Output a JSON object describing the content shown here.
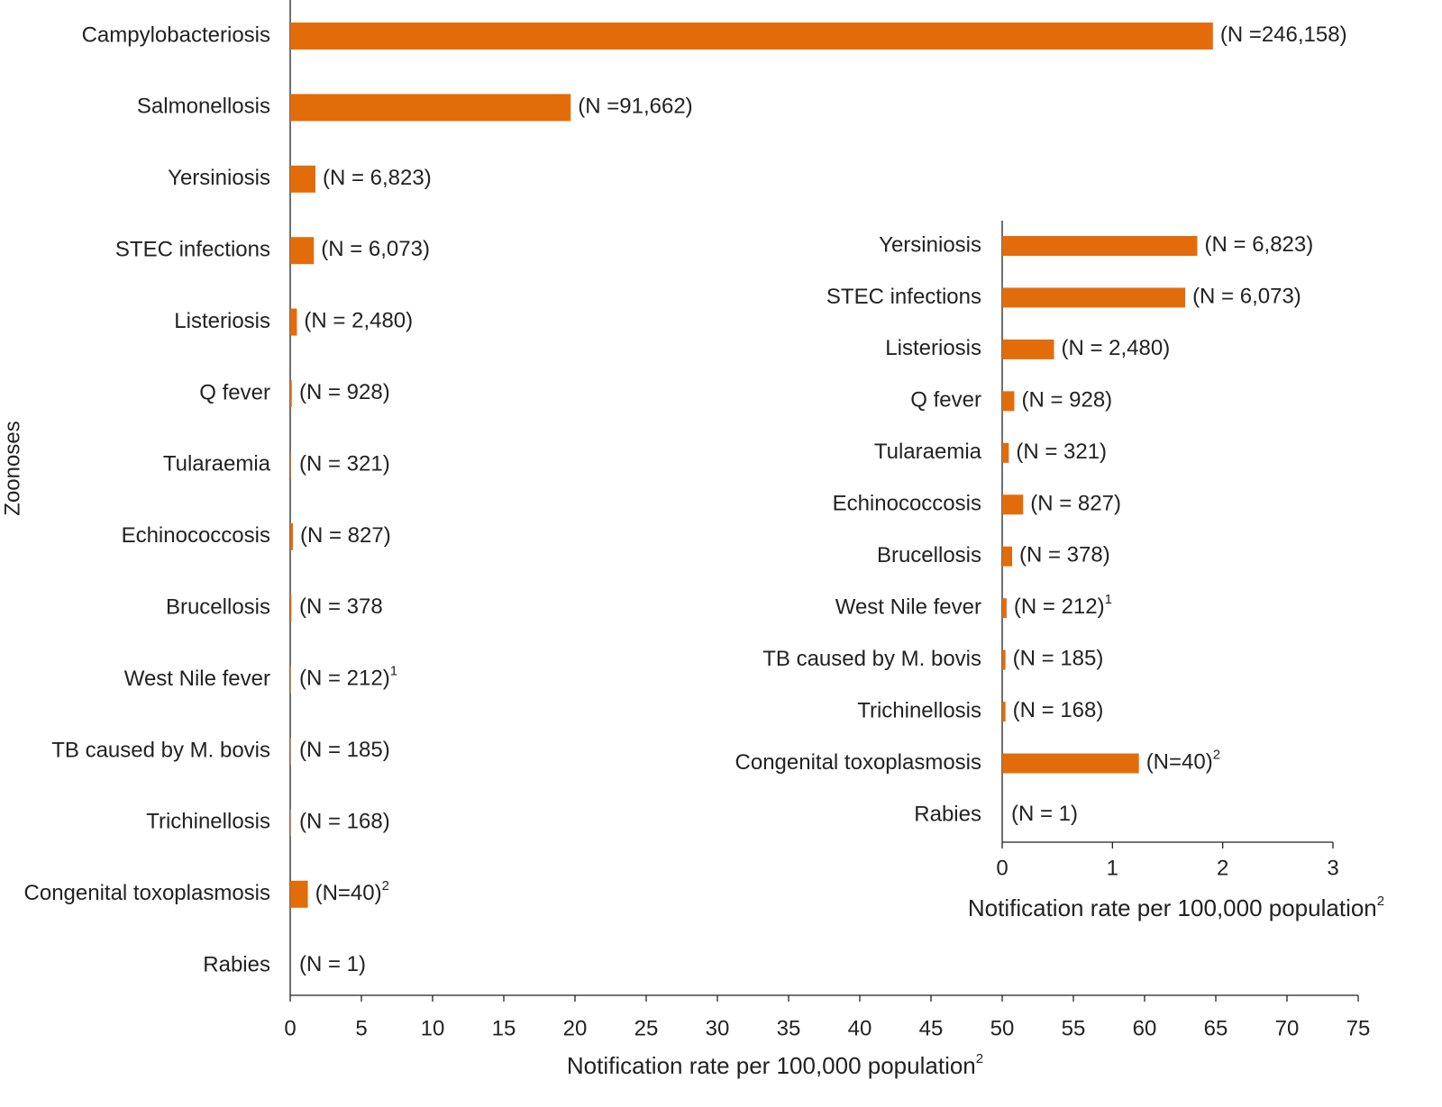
{
  "chart_data": [
    {
      "type": "bar",
      "orientation": "horizontal",
      "color": "#e36c0a",
      "y_label": "Zoonoses",
      "x_label": "Notification rate per 100,000 population",
      "x_label_sup": "2",
      "categories": [
        "Campylobacteriosis",
        "Salmonellosis",
        "Yersiniosis",
        "STEC infections",
        "Listeriosis",
        "Q fever",
        "Tularaemia",
        "Echinococcosis",
        "Brucellosis",
        "West Nile fever",
        "TB caused by M. bovis",
        "Trichinellosis",
        "Congenital toxoplasmosis",
        "Rabies"
      ],
      "values": [
        64.8,
        19.7,
        1.77,
        1.66,
        0.47,
        0.11,
        0.06,
        0.19,
        0.09,
        0.04,
        0.03,
        0.03,
        1.24,
        0
      ],
      "annotations": [
        {
          "text": "(N =246,158)"
        },
        {
          "text": "(N =91,662)"
        },
        {
          "text": "(N = 6,823)"
        },
        {
          "text": "(N = 6,073)"
        },
        {
          "text": "(N = 2,480)"
        },
        {
          "text": "(N = 928)"
        },
        {
          "text": "(N = 321)"
        },
        {
          "text": "(N = 827)"
        },
        {
          "text": "(N = 378"
        },
        {
          "text": "(N = 212)",
          "sup": "1"
        },
        {
          "text": "(N = 185)"
        },
        {
          "text": "(N = 168)"
        },
        {
          "text": "(N=40)",
          "sup": "2"
        },
        {
          "text": "(N = 1)"
        }
      ],
      "xlim": [
        0,
        75
      ],
      "xticks": [
        0,
        5,
        10,
        15,
        20,
        25,
        30,
        35,
        40,
        45,
        50,
        55,
        60,
        65,
        70,
        75
      ]
    },
    {
      "type": "bar",
      "orientation": "horizontal",
      "color": "#e36c0a",
      "x_label": "Notification rate per 100,000 population",
      "x_label_sup": "2",
      "categories": [
        "Yersiniosis",
        "STEC infections",
        "Listeriosis",
        "Q fever",
        "Tularaemia",
        "Echinococcosis",
        "Brucellosis",
        "West Nile fever",
        "TB caused by M. bovis",
        "Trichinellosis",
        "Congenital toxoplasmosis",
        "Rabies"
      ],
      "values": [
        1.77,
        1.66,
        0.47,
        0.11,
        0.06,
        0.19,
        0.09,
        0.04,
        0.03,
        0.03,
        1.24,
        0
      ],
      "annotations": [
        {
          "text": "(N = 6,823)"
        },
        {
          "text": "(N = 6,073)"
        },
        {
          "text": "(N = 2,480)"
        },
        {
          "text": "(N = 928)"
        },
        {
          "text": "(N = 321)"
        },
        {
          "text": "(N = 827)"
        },
        {
          "text": "(N = 378)"
        },
        {
          "text": "(N = 212)",
          "sup": "1"
        },
        {
          "text": "(N = 185)"
        },
        {
          "text": "(N = 168)"
        },
        {
          "text": "(N=40)",
          "sup": "2"
        },
        {
          "text": "(N = 1)"
        }
      ],
      "xlim": [
        0,
        3
      ],
      "xticks": [
        0,
        1,
        2,
        3
      ]
    }
  ]
}
